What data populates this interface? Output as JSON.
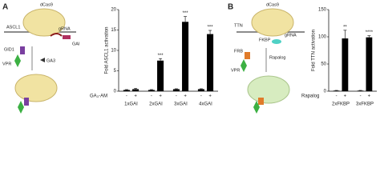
{
  "panels": [
    "A",
    "B"
  ],
  "diagram_a": {
    "dcas9": "dCas9",
    "gene": "ASCL1",
    "grna": "gRNA",
    "gai": "GAI",
    "gid1": "GID1",
    "vpr": "VPR",
    "ligand": "GA3"
  },
  "diagram_b": {
    "dcas9": "dCas9",
    "gene": "TTN",
    "grna": "gRNA",
    "fkbp": "FKBP",
    "frb": "FRB",
    "vpr": "VPR",
    "ligand": "Rapalog"
  },
  "chart_data": [
    {
      "type": "bar",
      "y_label": "Fold ASCL1 activation",
      "treatment_label": "GA₃-AM",
      "categories": [
        "1xGAI",
        "2xGAI",
        "3xGAI",
        "4xGAI"
      ],
      "series": [
        {
          "name": "-",
          "color": "#000000",
          "values": [
            0.3,
            0.3,
            0.5,
            0.5
          ],
          "errors": [
            0.1,
            0.1,
            0.1,
            0.1
          ]
        },
        {
          "name": "+",
          "color": "#000000",
          "values": [
            0.5,
            7.5,
            17,
            14
          ],
          "errors": [
            0.2,
            0.5,
            1.3,
            0.9
          ]
        }
      ],
      "annotations": [
        {
          "category": "2xGAI",
          "text": "***"
        },
        {
          "category": "3xGAI",
          "text": "***"
        },
        {
          "category": "4xGAI",
          "text": "***"
        }
      ],
      "ylim": [
        0,
        20
      ],
      "yticks": [
        0,
        5,
        10,
        15,
        20
      ]
    },
    {
      "type": "bar",
      "y_label": "Fold TTN activation",
      "treatment_label": "Rapalog",
      "categories": [
        "2xFKBP",
        "3xFKBP"
      ],
      "series": [
        {
          "name": "-",
          "color": "#000000",
          "values": [
            1,
            1
          ],
          "errors": [
            0.5,
            0.5
          ]
        },
        {
          "name": "+",
          "color": "#000000",
          "values": [
            97,
            99
          ],
          "errors": [
            15,
            3
          ]
        }
      ],
      "annotations": [
        {
          "category": "2xFKBP",
          "text": "**"
        },
        {
          "category": "3xFKBP",
          "text": "****"
        }
      ],
      "ylim": [
        0,
        150
      ],
      "yticks": [
        0,
        50,
        100,
        150
      ]
    }
  ]
}
